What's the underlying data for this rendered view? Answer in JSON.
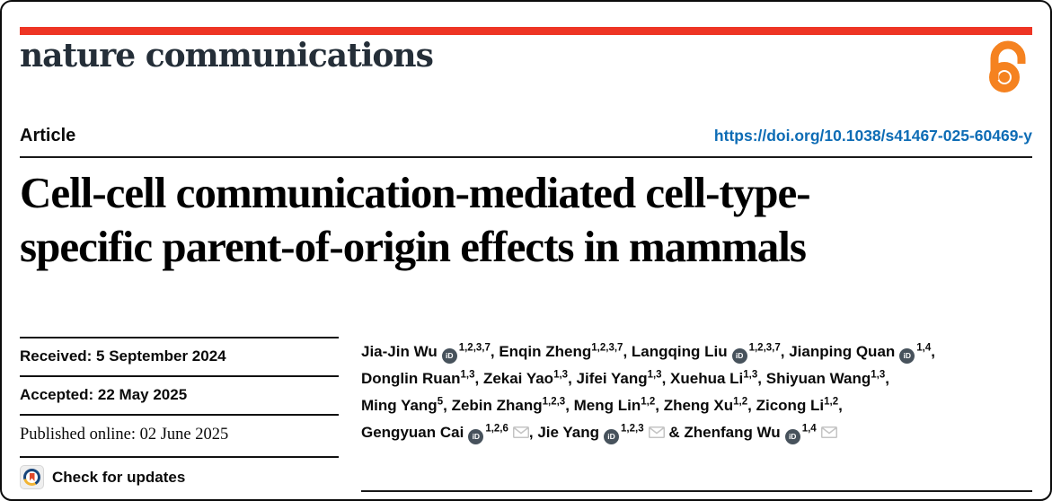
{
  "colors": {
    "masthead_bar": "#ee3524",
    "doi_link": "#0d6cb5",
    "open_access": "#f58220",
    "orcid_badge": "#47525c",
    "crossmark_red": "#e0492c",
    "crossmark_blue": "#17457c",
    "crossmark_yellow": "#f1b434"
  },
  "masthead": {
    "journal": "nature communications",
    "open_access_icon": "open-access-lock"
  },
  "header": {
    "article_label": "Article",
    "doi": "https://doi.org/10.1038/s41467-025-60469-y"
  },
  "title": {
    "line1": "Cell-cell communication-mediated cell-type-",
    "line2": "specific parent-of-origin effects in mammals"
  },
  "dates": {
    "received": "Received: 5 September 2024",
    "accepted": "Accepted: 22 May 2025",
    "published": "Published online: 02 June 2025",
    "check_updates": "Check for updates"
  },
  "authors": {
    "orcid_icon_label": "iD",
    "lines": [
      [
        {
          "name": "Jia-Jin Wu",
          "orcid": true,
          "sup": "1,2,3,7",
          "mail": false,
          "sep": ", "
        },
        {
          "name": "Enqin Zheng",
          "orcid": false,
          "sup": "1,2,3,7",
          "mail": false,
          "sep": ", "
        },
        {
          "name": "Langqing Liu",
          "orcid": true,
          "sup": "1,2,3,7",
          "mail": false,
          "sep": ", "
        },
        {
          "name": "Jianping Quan",
          "orcid": true,
          "sup": "1,4",
          "mail": false,
          "sep": ","
        }
      ],
      [
        {
          "name": "Donglin Ruan",
          "orcid": false,
          "sup": "1,3",
          "mail": false,
          "sep": ", "
        },
        {
          "name": "Zekai Yao",
          "orcid": false,
          "sup": "1,3",
          "mail": false,
          "sep": ", "
        },
        {
          "name": "Jifei Yang",
          "orcid": false,
          "sup": "1,3",
          "mail": false,
          "sep": ", "
        },
        {
          "name": "Xuehua Li",
          "orcid": false,
          "sup": "1,3",
          "mail": false,
          "sep": ", "
        },
        {
          "name": "Shiyuan Wang",
          "orcid": false,
          "sup": "1,3",
          "mail": false,
          "sep": ","
        }
      ],
      [
        {
          "name": "Ming Yang",
          "orcid": false,
          "sup": "5",
          "mail": false,
          "sep": ", "
        },
        {
          "name": "Zebin Zhang",
          "orcid": false,
          "sup": "1,2,3",
          "mail": false,
          "sep": ", "
        },
        {
          "name": "Meng Lin",
          "orcid": false,
          "sup": "1,2",
          "mail": false,
          "sep": ", "
        },
        {
          "name": "Zheng Xu",
          "orcid": false,
          "sup": "1,2",
          "mail": false,
          "sep": ", "
        },
        {
          "name": "Zicong Li",
          "orcid": false,
          "sup": "1,2",
          "mail": false,
          "sep": ","
        }
      ],
      [
        {
          "name": "Gengyuan Cai",
          "orcid": true,
          "sup": "1,2,6",
          "mail": true,
          "sep": ", "
        },
        {
          "name": "Jie Yang",
          "orcid": true,
          "sup": "1,2,3",
          "mail": true,
          "sep": " & "
        },
        {
          "name": "Zhenfang Wu",
          "orcid": true,
          "sup": "1,4",
          "mail": true,
          "sep": ""
        }
      ]
    ]
  }
}
